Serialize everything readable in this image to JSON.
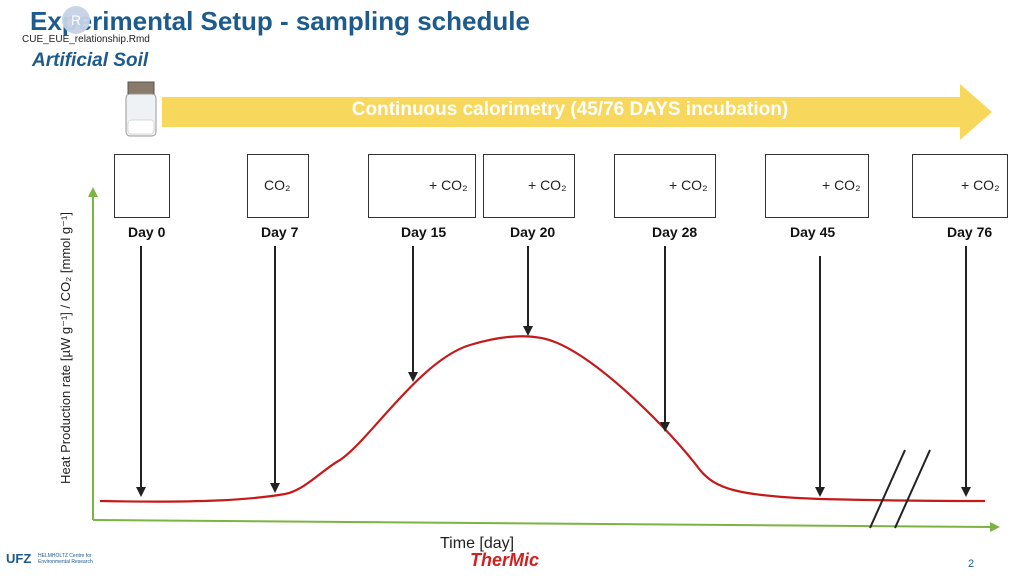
{
  "slide": {
    "title": "Experimental Setup - sampling schedule",
    "filename": "CUE_EUE_relationship.Rmd",
    "subtitle": "Artificial Soil",
    "arrow_label": "Continuous calorimetry (45/76 DAYS incubation)",
    "r_logo_text": "R",
    "page_number": "2"
  },
  "axes": {
    "ylabel": "Heat Production rate [µW g⁻¹] / CO₂ [mmol g⁻¹]",
    "xlabel": "Time [day]"
  },
  "samples": [
    {
      "day": "Day 0",
      "jar": true,
      "label": ""
    },
    {
      "day": "Day 7",
      "jar": false,
      "label": "CO₂"
    },
    {
      "day": "Day 15",
      "jar": true,
      "label": "+ CO₂"
    },
    {
      "day": "Day 20",
      "jar": true,
      "label": "+ CO₂"
    },
    {
      "day": "Day 28",
      "jar": true,
      "label": "+ CO₂"
    },
    {
      "day": "Day 45",
      "jar": true,
      "label": "+ CO₂"
    },
    {
      "day": "Day 76",
      "jar": true,
      "label": "+ CO₂"
    }
  ],
  "logos": {
    "ufz": "UFZ",
    "ufz_sub": "HELMHOLTZ Centre for Environmental Research",
    "thermic": "TherMic"
  },
  "colors": {
    "title": "#1d5b8c",
    "arrow": "#f6d34a",
    "curve": "#c41a1a",
    "axis": "#7cb342"
  }
}
